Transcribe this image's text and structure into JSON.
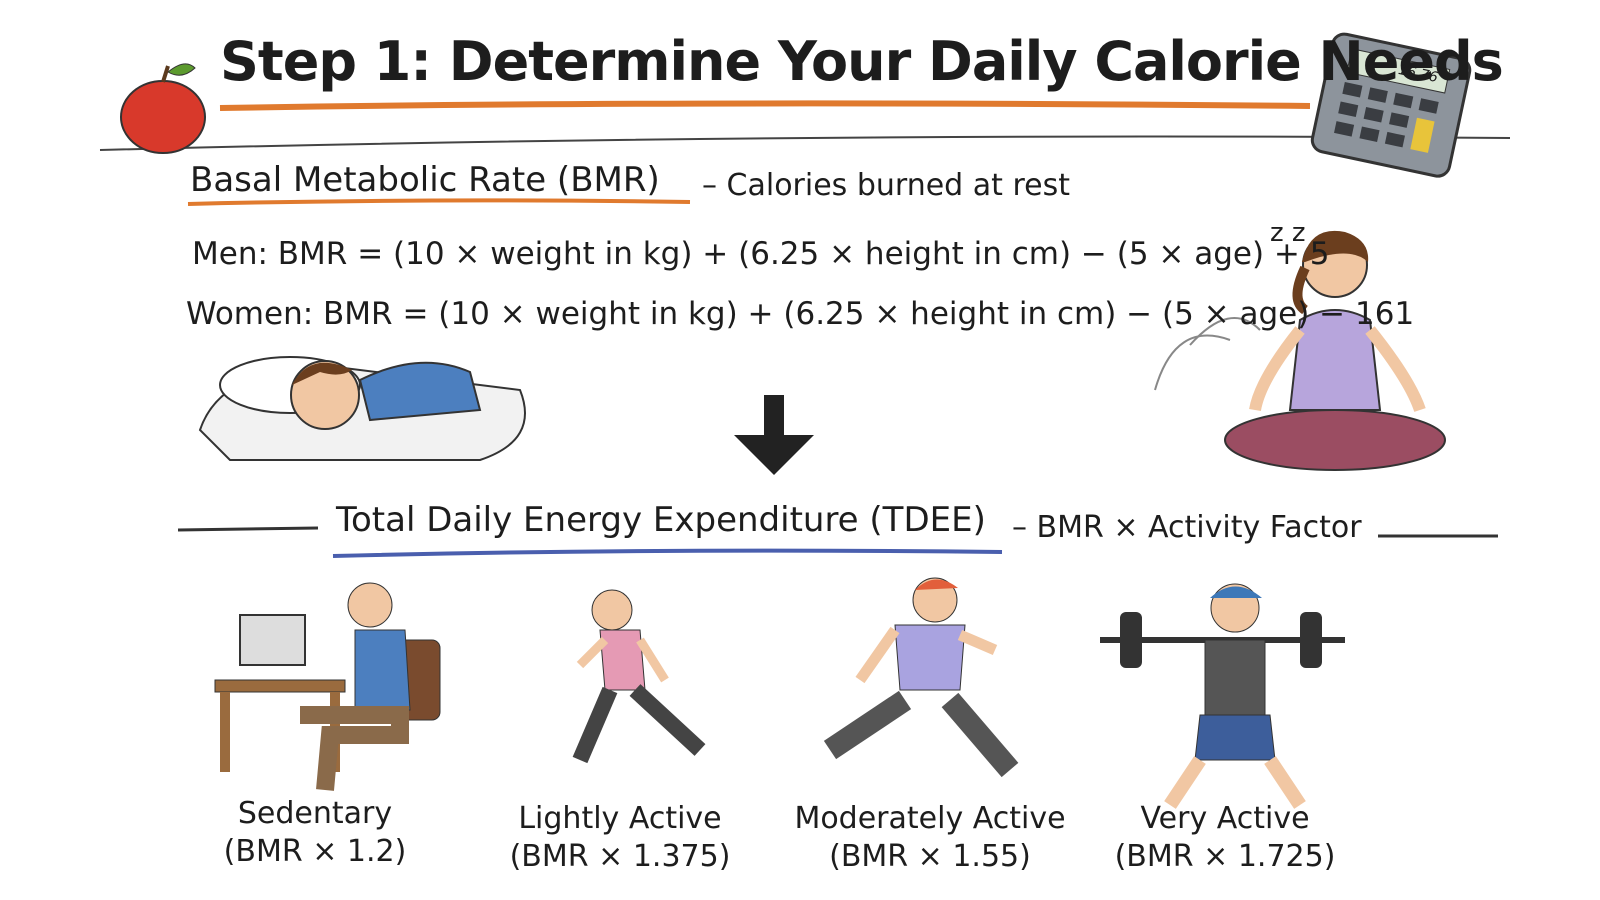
{
  "header": {
    "title": "Step 1: Determine Your Daily Calorie Needs",
    "calculator_display": "16.76"
  },
  "bmr": {
    "heading": "Basal Metabolic Rate (BMR)",
    "subheading": "– Calories burned at rest",
    "formulas": [
      {
        "label": "Men:",
        "formula": "BMR = (10 × weight in kg) + (6.25 × height in cm) − (5 × age) + 5"
      },
      {
        "label": "Women:",
        "formula": "BMR = (10 × weight in kg) + (6.25 × height in cm) − (5 × age) − 161"
      }
    ],
    "sleep_mark": "z z"
  },
  "tdee": {
    "heading": "Total Daily Energy Expenditure (TDEE)",
    "subheading": "– BMR × Activity Factor",
    "levels": [
      {
        "name": "Sedentary",
        "factor": "(BMR × 1.2)"
      },
      {
        "name": "Lightly Active",
        "factor": "(BMR × 1.375)"
      },
      {
        "name": "Moderately Active",
        "factor": "(BMR × 1.55)"
      },
      {
        "name": "Very Active",
        "factor": "(BMR × 1.725)"
      }
    ]
  }
}
